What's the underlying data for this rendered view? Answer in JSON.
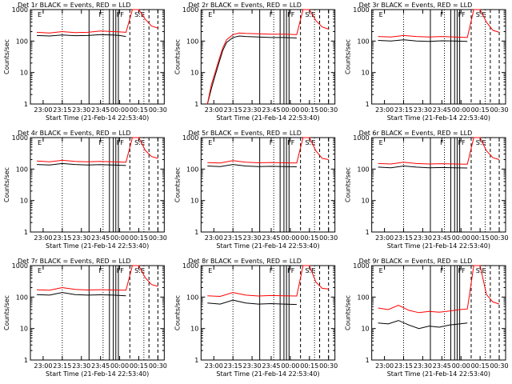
{
  "figure": {
    "x_label": "Start Time (21-Feb-14 22:53:40)",
    "y_label": "Counts/sec"
  },
  "legend_tokens": {
    "E": "E",
    "F": "F",
    "F_double": "FF",
    "F_triple": "FFF",
    "SE": "S:E",
    "P": "P"
  },
  "colors": {
    "events": "#000000",
    "lld": "#ff0000",
    "axes": "#000000",
    "background": "#ffffff"
  },
  "chart_data": [
    {
      "type": "line",
      "title": "Det 1r BLACK = Events, RED = LLD",
      "ylabel": "Counts/sec",
      "xlabel": "Start Time (21-Feb-14 22:53:40)",
      "y_scale": "log",
      "ylim": [
        1,
        1000
      ],
      "y_ticks": [
        "1",
        "10",
        "100",
        "1000"
      ],
      "x_ticks": [
        "23:00",
        "23:15",
        "23:30",
        "23:45",
        "00:00",
        "00:15",
        "00:30"
      ],
      "series": [
        {
          "name": "BLACK = Events",
          "color": "#000000",
          "x_minutes": [
            0,
            10,
            20,
            30,
            40,
            50,
            60,
            65,
            70
          ],
          "values": [
            150,
            145,
            155,
            148,
            150,
            160,
            155,
            150,
            140
          ]
        },
        {
          "name": "RED = LLD",
          "color": "#ff0000",
          "x_minutes": [
            0,
            10,
            20,
            30,
            40,
            50,
            60,
            65,
            70,
            75,
            80,
            85,
            90,
            95
          ],
          "values": [
            190,
            180,
            200,
            185,
            190,
            210,
            200,
            195,
            190,
            1000,
            1000,
            500,
            300,
            260
          ]
        }
      ],
      "annotations": [
        {
          "x_minutes": 0,
          "label": "E"
        },
        {
          "x_minutes": 48,
          "label": "F"
        },
        {
          "x_minutes": 62,
          "label": "FF"
        },
        {
          "x_minutes": 76,
          "label": "S:E"
        }
      ]
    },
    {
      "type": "line",
      "title": "Det 2r BLACK = Events, RED = LLD",
      "ylabel": "Counts/sec",
      "xlabel": "Start Time (21-Feb-14 22:53:40)",
      "y_scale": "log",
      "ylim": [
        1,
        1000
      ],
      "y_ticks": [
        "1",
        "10",
        "100",
        "1000"
      ],
      "x_ticks": [
        "23:00",
        "23:15",
        "23:30",
        "23:45",
        "00:00",
        "00:15",
        "00:30"
      ],
      "series": [
        {
          "name": "BLACK = Events",
          "color": "#000000",
          "x_minutes": [
            0,
            3,
            6,
            9,
            12,
            15,
            20,
            25,
            30,
            40,
            50,
            60,
            70
          ],
          "values": [
            1,
            3,
            8,
            20,
            50,
            90,
            130,
            145,
            140,
            135,
            130,
            130,
            125
          ]
        },
        {
          "name": "RED = LLD",
          "color": "#ff0000",
          "x_minutes": [
            0,
            3,
            6,
            9,
            12,
            15,
            20,
            25,
            30,
            40,
            50,
            60,
            70,
            75,
            80,
            85,
            90,
            95
          ],
          "values": [
            1,
            4,
            10,
            25,
            60,
            110,
            160,
            180,
            175,
            170,
            165,
            165,
            160,
            1000,
            1000,
            450,
            280,
            240
          ]
        }
      ],
      "annotations": [
        {
          "x_minutes": 0,
          "label": "E"
        },
        {
          "x_minutes": 48,
          "label": "F"
        },
        {
          "x_minutes": 62,
          "label": "FF"
        },
        {
          "x_minutes": 76,
          "label": "S:E"
        }
      ]
    },
    {
      "type": "line",
      "title": "Det 3r BLACK = Events, RED = LLD",
      "ylabel": "Counts/sec",
      "xlabel": "Start Time (21-Feb-14 22:53:40)",
      "y_scale": "log",
      "ylim": [
        1,
        1000
      ],
      "y_ticks": [
        "1",
        "10",
        "100",
        "1000"
      ],
      "x_ticks": [
        "23:00",
        "23:15",
        "23:30",
        "23:45",
        "00:00",
        "00:15",
        "00:30"
      ],
      "series": [
        {
          "name": "BLACK = Events",
          "color": "#000000",
          "x_minutes": [
            0,
            10,
            20,
            30,
            40,
            50,
            60,
            70
          ],
          "values": [
            105,
            100,
            110,
            100,
            98,
            102,
            100,
            98
          ]
        },
        {
          "name": "RED = LLD",
          "color": "#ff0000",
          "x_minutes": [
            0,
            10,
            20,
            30,
            40,
            50,
            60,
            70,
            75,
            80,
            85,
            90,
            95
          ],
          "values": [
            140,
            135,
            150,
            140,
            135,
            140,
            135,
            130,
            1000,
            1000,
            400,
            220,
            190
          ]
        }
      ],
      "annotations": [
        {
          "x_minutes": 0,
          "label": "E"
        },
        {
          "x_minutes": 48,
          "label": "F"
        },
        {
          "x_minutes": 62,
          "label": "FF"
        },
        {
          "x_minutes": 76,
          "label": "S:E"
        }
      ]
    },
    {
      "type": "line",
      "title": "Det 4r BLACK = Events, RED = LLD",
      "ylabel": "Counts/sec",
      "xlabel": "Start Time (21-Feb-14 22:53:40)",
      "y_scale": "log",
      "ylim": [
        1,
        1000
      ],
      "y_ticks": [
        "1",
        "10",
        "100",
        "1000"
      ],
      "x_ticks": [
        "23:00",
        "23:15",
        "23:30",
        "23:45",
        "00:00",
        "00:15",
        "00:30"
      ],
      "series": [
        {
          "name": "BLACK = Events",
          "color": "#000000",
          "x_minutes": [
            0,
            10,
            20,
            30,
            40,
            50,
            60,
            70
          ],
          "values": [
            140,
            135,
            150,
            140,
            135,
            138,
            135,
            130
          ]
        },
        {
          "name": "RED = LLD",
          "color": "#ff0000",
          "x_minutes": [
            0,
            10,
            20,
            30,
            40,
            50,
            60,
            70,
            75,
            80,
            85,
            90,
            95
          ],
          "values": [
            180,
            170,
            190,
            175,
            170,
            175,
            170,
            165,
            1000,
            1000,
            400,
            250,
            220
          ]
        }
      ],
      "annotations": [
        {
          "x_minutes": 0,
          "label": "E"
        },
        {
          "x_minutes": 48,
          "label": "F"
        },
        {
          "x_minutes": 62,
          "label": "FF"
        },
        {
          "x_minutes": 76,
          "label": "S:E"
        }
      ]
    },
    {
      "type": "line",
      "title": "Det 5r BLACK = Events, RED = LLD",
      "ylabel": "Counts/sec",
      "xlabel": "Start Time (21-Feb-14 22:53:40)",
      "y_scale": "log",
      "ylim": [
        1,
        1000
      ],
      "y_ticks": [
        "1",
        "10",
        "100",
        "1000"
      ],
      "x_ticks": [
        "23:00",
        "23:15",
        "23:30",
        "23:45",
        "00:00",
        "00:15",
        "00:30"
      ],
      "series": [
        {
          "name": "BLACK = Events",
          "color": "#000000",
          "x_minutes": [
            0,
            10,
            20,
            30,
            40,
            50,
            60,
            70
          ],
          "values": [
            125,
            120,
            140,
            125,
            120,
            122,
            120,
            118
          ]
        },
        {
          "name": "RED = LLD",
          "color": "#ff0000",
          "x_minutes": [
            0,
            10,
            20,
            30,
            40,
            50,
            60,
            70,
            75,
            80,
            85,
            90,
            95
          ],
          "values": [
            160,
            155,
            185,
            165,
            158,
            162,
            158,
            155,
            1000,
            1000,
            380,
            220,
            200
          ]
        }
      ],
      "annotations": [
        {
          "x_minutes": 0,
          "label": "E"
        },
        {
          "x_minutes": 48,
          "label": "F"
        },
        {
          "x_minutes": 62,
          "label": "FF"
        },
        {
          "x_minutes": 76,
          "label": "S:E"
        }
      ]
    },
    {
      "type": "line",
      "title": "Det 6r BLACK = Events, RED = LLD",
      "ylabel": "Counts/sec",
      "xlabel": "Start Time (21-Feb-14 22:53:40)",
      "y_scale": "log",
      "ylim": [
        1,
        1000
      ],
      "y_ticks": [
        "1",
        "10",
        "100",
        "1000"
      ],
      "x_ticks": [
        "23:00",
        "23:15",
        "23:30",
        "23:45",
        "00:00",
        "00:15",
        "00:30"
      ],
      "series": [
        {
          "name": "BLACK = Events",
          "color": "#000000",
          "x_minutes": [
            0,
            10,
            20,
            30,
            40,
            50,
            60,
            70
          ],
          "values": [
            115,
            110,
            125,
            115,
            110,
            112,
            110,
            108
          ]
        },
        {
          "name": "RED = LLD",
          "color": "#ff0000",
          "x_minutes": [
            0,
            10,
            20,
            30,
            40,
            50,
            60,
            70,
            75,
            80,
            85,
            90,
            95
          ],
          "values": [
            150,
            145,
            165,
            150,
            145,
            148,
            145,
            142,
            1000,
            1000,
            380,
            230,
            200
          ]
        }
      ],
      "annotations": [
        {
          "x_minutes": 0,
          "label": "E"
        },
        {
          "x_minutes": 48,
          "label": "F"
        },
        {
          "x_minutes": 62,
          "label": "FF"
        },
        {
          "x_minutes": 76,
          "label": "S:E"
        }
      ]
    },
    {
      "type": "line",
      "title": "Det 7r BLACK = Events, RED = LLD",
      "ylabel": "Counts/sec",
      "xlabel": "Start Time (21-Feb-14 22:53:40)",
      "y_scale": "log",
      "ylim": [
        1,
        1000
      ],
      "y_ticks": [
        "1",
        "10",
        "100",
        "1000"
      ],
      "x_ticks": [
        "23:00",
        "23:15",
        "23:30",
        "23:45",
        "00:00",
        "00:15",
        "00:30"
      ],
      "series": [
        {
          "name": "BLACK = Events",
          "color": "#000000",
          "x_minutes": [
            0,
            10,
            20,
            30,
            40,
            50,
            60,
            70
          ],
          "values": [
            120,
            115,
            140,
            120,
            115,
            118,
            115,
            110
          ]
        },
        {
          "name": "RED = LLD",
          "color": "#ff0000",
          "x_minutes": [
            0,
            10,
            20,
            30,
            40,
            50,
            60,
            70,
            75,
            80,
            85,
            90,
            95
          ],
          "values": [
            170,
            165,
            200,
            175,
            168,
            172,
            168,
            165,
            1000,
            1000,
            420,
            250,
            220
          ]
        }
      ],
      "annotations": [
        {
          "x_minutes": 0,
          "label": "E"
        },
        {
          "x_minutes": 48,
          "label": "F"
        },
        {
          "x_minutes": 62,
          "label": "FF"
        },
        {
          "x_minutes": 76,
          "label": "S:E"
        }
      ]
    },
    {
      "type": "line",
      "title": "Det 8r BLACK = Events, RED = LLD",
      "ylabel": "Counts/sec",
      "xlabel": "Start Time (21-Feb-14 22:53:40)",
      "y_scale": "log",
      "ylim": [
        1,
        1000
      ],
      "y_ticks": [
        "1",
        "10",
        "100",
        "1000"
      ],
      "x_ticks": [
        "23:00",
        "23:15",
        "23:30",
        "23:45",
        "00:00",
        "00:15",
        "00:30"
      ],
      "series": [
        {
          "name": "BLACK = Events",
          "color": "#000000",
          "x_minutes": [
            0,
            10,
            20,
            30,
            40,
            50,
            60,
            70
          ],
          "values": [
            65,
            60,
            80,
            65,
            60,
            62,
            60,
            58
          ]
        },
        {
          "name": "RED = LLD",
          "color": "#ff0000",
          "x_minutes": [
            0,
            10,
            20,
            30,
            40,
            50,
            60,
            70,
            75,
            80,
            85,
            90,
            95
          ],
          "values": [
            110,
            105,
            140,
            115,
            108,
            112,
            110,
            108,
            1000,
            1000,
            300,
            190,
            180
          ]
        }
      ],
      "annotations": [
        {
          "x_minutes": 0,
          "label": "E"
        },
        {
          "x_minutes": 48,
          "label": "F"
        },
        {
          "x_minutes": 62,
          "label": "FF"
        },
        {
          "x_minutes": 76,
          "label": "S:E"
        }
      ]
    },
    {
      "type": "line",
      "title": "Det 9r BLACK = Events, RED = LLD",
      "ylabel": "Counts/sec",
      "xlabel": "Start Time (21-Feb-14 22:53:40)",
      "y_scale": "log",
      "ylim": [
        1,
        1000
      ],
      "y_ticks": [
        "1",
        "10",
        "100",
        "1000"
      ],
      "x_ticks": [
        "23:00",
        "23:15",
        "23:30",
        "23:45",
        "00:00",
        "00:15",
        "00:30"
      ],
      "series": [
        {
          "name": "BLACK = Events",
          "color": "#000000",
          "x_minutes": [
            0,
            8,
            16,
            24,
            32,
            40,
            48,
            56,
            64,
            70
          ],
          "values": [
            15,
            14,
            18,
            13,
            10,
            12,
            11,
            13,
            14,
            15
          ]
        },
        {
          "name": "RED = LLD",
          "color": "#ff0000",
          "x_minutes": [
            0,
            8,
            16,
            24,
            32,
            40,
            48,
            56,
            64,
            70,
            75,
            80,
            85,
            90,
            95
          ],
          "values": [
            45,
            40,
            55,
            38,
            32,
            35,
            33,
            36,
            40,
            42,
            1000,
            1000,
            120,
            70,
            60
          ]
        }
      ],
      "annotations": [
        {
          "x_minutes": 0,
          "label": "E"
        },
        {
          "x_minutes": 48,
          "label": "F"
        },
        {
          "x_minutes": 62,
          "label": "FF"
        },
        {
          "x_minutes": 76,
          "label": "S:E"
        }
      ]
    }
  ]
}
